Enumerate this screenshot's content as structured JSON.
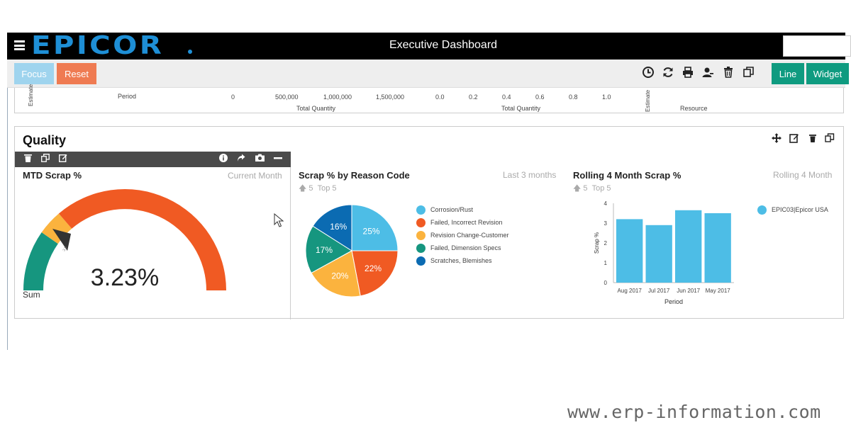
{
  "app": {
    "logo": "EPICOR",
    "title": "Executive Dashboard"
  },
  "toolbar": {
    "focus_label": "Focus",
    "reset_label": "Reset",
    "line_label": "Line",
    "widget_label": "Widget",
    "icons": [
      "clock-icon",
      "refresh-icon",
      "print-icon",
      "user-icon",
      "delete-icon",
      "copy-icon"
    ]
  },
  "previous_widgets": {
    "axis_label_period": "Period",
    "axis_label_estimate": "Estimate",
    "qty_ticks_a": [
      "0",
      "500,000",
      "1,000,000",
      "1,500,000"
    ],
    "qty_label_a": "Total Quantity",
    "qty_ticks_b": [
      "0.0",
      "0.2",
      "0.4",
      "0.6",
      "0.8",
      "1.0"
    ],
    "qty_label_b": "Total Quantity",
    "estimate_label": "Estimate",
    "resource_label": "Resource"
  },
  "quality": {
    "title": "Quality",
    "mtd": {
      "title": "MTD Scrap %",
      "subtitle": "Current Month",
      "value": "3.23%",
      "sum_label": "Sum",
      "gauge_fraction": 0.2
    },
    "reason": {
      "title": "Scrap % by Reason Code",
      "subtitle": "Last 3 months",
      "meta_count": "5",
      "meta_top": "Top 5"
    },
    "rolling": {
      "title": "Rolling 4 Month Scrap %",
      "subtitle": "Rolling 4 Month",
      "meta_count": "5",
      "meta_top": "Top 5"
    }
  },
  "chart_data": [
    {
      "type": "pie",
      "title": "Scrap % by Reason Code",
      "categories": [
        "Corrosion/Rust",
        "Failed, Incorrect Revision",
        "Revision Change-Customer",
        "Failed, Dimension Specs",
        "Scratches, Blemishes"
      ],
      "values": [
        25,
        22,
        20,
        17,
        16
      ],
      "labels": [
        "25%",
        "22%",
        "20%",
        "17%",
        "16%"
      ],
      "colors": [
        "#4dbde6",
        "#f05a23",
        "#fbb33e",
        "#16967f",
        "#0b6bb2"
      ]
    },
    {
      "type": "bar",
      "title": "Rolling 4 Month Scrap %",
      "categories": [
        "Aug 2017",
        "Jul 2017",
        "Jun 2017",
        "May 2017"
      ],
      "series": [
        {
          "name": "EPIC03|Epicor USA",
          "values": [
            3.2,
            2.9,
            3.65,
            3.5
          ]
        }
      ],
      "xlabel": "Period",
      "ylabel": "Scrap %",
      "ylim": [
        0,
        4
      ],
      "yticks": [
        "0",
        "1",
        "2",
        "3",
        "4"
      ],
      "color": "#4dbde6",
      "legend": "right"
    }
  ],
  "watermark": "www.erp-information.com"
}
